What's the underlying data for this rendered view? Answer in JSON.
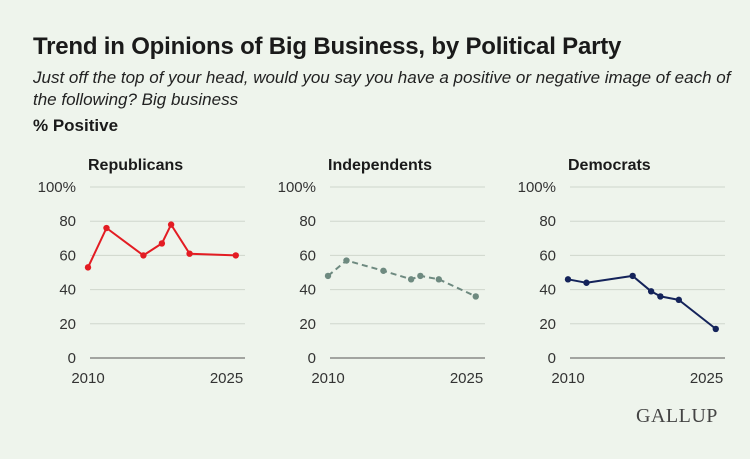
{
  "title": "Trend in Opinions of Big Business, by Political Party",
  "subtitle": "Just off the top of your head, would you say you have a positive or negative image of each of the following? Big business",
  "unit_label": "% Positive",
  "brand": "GALLUP",
  "chart_data": [
    {
      "type": "line",
      "title": "Republicans",
      "color": "#e31c23",
      "line_style": "solid",
      "xlabel": "",
      "ylabel": "",
      "xlim": [
        2010,
        2027
      ],
      "ylim": [
        0,
        100
      ],
      "xticks": [
        "2010",
        "2025"
      ],
      "yticks": [
        "0",
        "20",
        "40",
        "60",
        "80",
        "100%"
      ],
      "grid": true,
      "x": [
        2010,
        2012,
        2016,
        2018,
        2019,
        2021,
        2026
      ],
      "y": [
        53,
        76,
        60,
        67,
        78,
        61,
        60
      ]
    },
    {
      "type": "line",
      "title": "Independents",
      "color": "#6e8a80",
      "line_style": "dashed",
      "xlabel": "",
      "ylabel": "",
      "xlim": [
        2010,
        2027
      ],
      "ylim": [
        0,
        100
      ],
      "xticks": [
        "2010",
        "2025"
      ],
      "yticks": [
        "0",
        "20",
        "40",
        "60",
        "80",
        "100%"
      ],
      "grid": true,
      "x": [
        2010,
        2012,
        2016,
        2019,
        2020,
        2022,
        2026
      ],
      "y": [
        48,
        57,
        51,
        46,
        48,
        46,
        36
      ]
    },
    {
      "type": "line",
      "title": "Democrats",
      "color": "#14235a",
      "line_style": "solid",
      "xlabel": "",
      "ylabel": "",
      "xlim": [
        2010,
        2027
      ],
      "ylim": [
        0,
        100
      ],
      "xticks": [
        "2010",
        "2025"
      ],
      "yticks": [
        "0",
        "20",
        "40",
        "60",
        "80",
        "100%"
      ],
      "grid": true,
      "x": [
        2010,
        2012,
        2017,
        2019,
        2020,
        2022,
        2026
      ],
      "y": [
        46,
        44,
        48,
        39,
        36,
        34,
        17
      ]
    }
  ]
}
